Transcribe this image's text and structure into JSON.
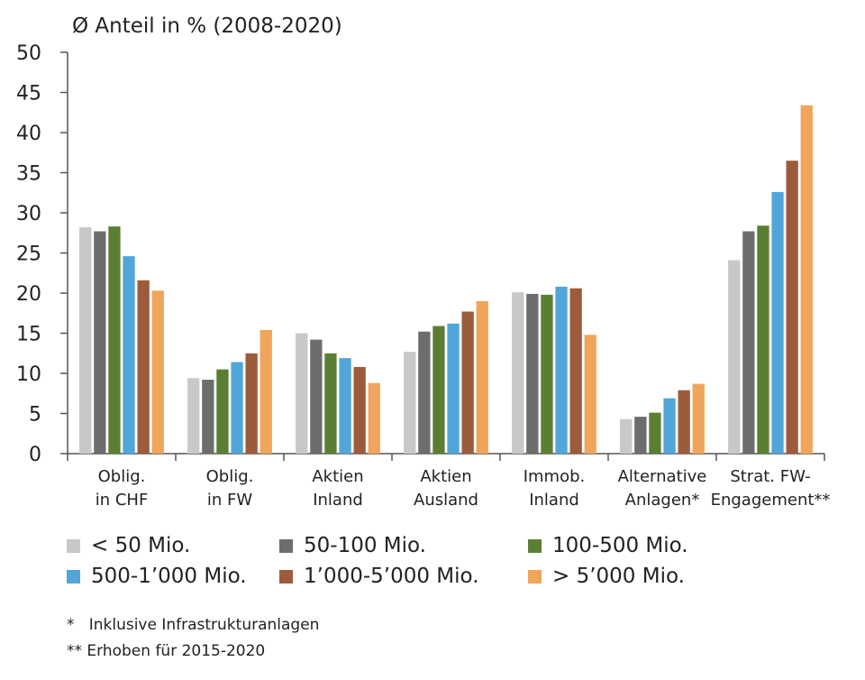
{
  "chart_data": {
    "type": "bar",
    "title": "Ø Anteil in % (2008-2020)",
    "ylim": [
      0,
      50
    ],
    "yticks": [
      0,
      5,
      10,
      15,
      20,
      25,
      30,
      35,
      40,
      45,
      50
    ],
    "categories": [
      [
        "Oblig.",
        "in CHF"
      ],
      [
        "Oblig.",
        "in FW"
      ],
      [
        "Aktien",
        "Inland"
      ],
      [
        "Aktien",
        "Ausland"
      ],
      [
        "Immob.",
        "Inland"
      ],
      [
        "Alternative",
        "Anlagen*"
      ],
      [
        "Strat. FW-",
        "Engagement**"
      ]
    ],
    "series": [
      {
        "name": "< 50 Mio.",
        "color": "#c8c8c8",
        "values": [
          28.2,
          9.4,
          15.0,
          12.7,
          20.1,
          4.3,
          24.1
        ]
      },
      {
        "name": "50-100 Mio.",
        "color": "#6d6d6d",
        "values": [
          27.7,
          9.2,
          14.2,
          15.2,
          19.9,
          4.6,
          27.7
        ]
      },
      {
        "name": "100-500 Mio.",
        "color": "#5b7f32",
        "values": [
          28.3,
          10.5,
          12.5,
          15.9,
          19.8,
          5.1,
          28.4
        ]
      },
      {
        "name": "500-1’000 Mio.",
        "color": "#50a6d8",
        "values": [
          24.6,
          11.4,
          11.9,
          16.2,
          20.8,
          6.9,
          32.6
        ]
      },
      {
        "name": "1’000-5’000 Mio.",
        "color": "#9c5c3c",
        "values": [
          21.6,
          12.5,
          10.8,
          17.7,
          20.6,
          7.9,
          36.5
        ]
      },
      {
        "name": "> 5’000 Mio.",
        "color": "#f0a55a",
        "values": [
          20.3,
          15.4,
          8.8,
          19.0,
          14.8,
          8.7,
          43.4
        ]
      }
    ]
  },
  "footnotes": {
    "note1": "*   Inklusive Infrastrukturanlagen",
    "note2": "** Erhoben für 2015-2020"
  }
}
